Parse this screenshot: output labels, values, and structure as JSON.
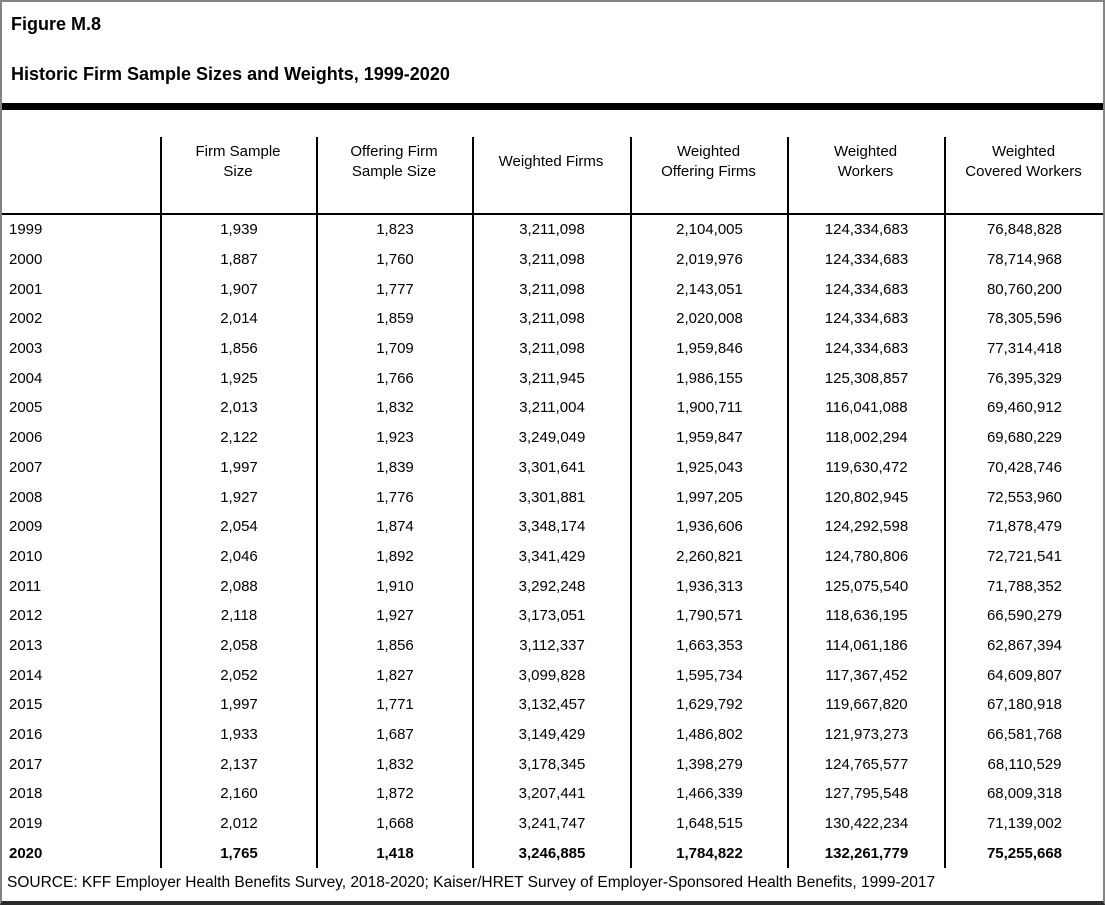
{
  "figure": {
    "label": "Figure M.8",
    "title": "Historic Firm Sample Sizes and Weights, 1999-2020"
  },
  "table": {
    "columns": [
      "",
      "Firm Sample\nSize",
      "Offering Firm\nSample Size",
      "Weighted Firms",
      "Weighted\nOffering Firms",
      "Weighted\nWorkers",
      "Weighted\nCovered Workers"
    ],
    "rows": [
      {
        "bold": false,
        "cells": [
          "1999",
          "1,939",
          "1,823",
          "3,211,098",
          "2,104,005",
          "124,334,683",
          "76,848,828"
        ]
      },
      {
        "bold": false,
        "cells": [
          "2000",
          "1,887",
          "1,760",
          "3,211,098",
          "2,019,976",
          "124,334,683",
          "78,714,968"
        ]
      },
      {
        "bold": false,
        "cells": [
          "2001",
          "1,907",
          "1,777",
          "3,211,098",
          "2,143,051",
          "124,334,683",
          "80,760,200"
        ]
      },
      {
        "bold": false,
        "cells": [
          "2002",
          "2,014",
          "1,859",
          "3,211,098",
          "2,020,008",
          "124,334,683",
          "78,305,596"
        ]
      },
      {
        "bold": false,
        "cells": [
          "2003",
          "1,856",
          "1,709",
          "3,211,098",
          "1,959,846",
          "124,334,683",
          "77,314,418"
        ]
      },
      {
        "bold": false,
        "cells": [
          "2004",
          "1,925",
          "1,766",
          "3,211,945",
          "1,986,155",
          "125,308,857",
          "76,395,329"
        ]
      },
      {
        "bold": false,
        "cells": [
          "2005",
          "2,013",
          "1,832",
          "3,211,004",
          "1,900,711",
          "116,041,088",
          "69,460,912"
        ]
      },
      {
        "bold": false,
        "cells": [
          "2006",
          "2,122",
          "1,923",
          "3,249,049",
          "1,959,847",
          "118,002,294",
          "69,680,229"
        ]
      },
      {
        "bold": false,
        "cells": [
          "2007",
          "1,997",
          "1,839",
          "3,301,641",
          "1,925,043",
          "119,630,472",
          "70,428,746"
        ]
      },
      {
        "bold": false,
        "cells": [
          "2008",
          "1,927",
          "1,776",
          "3,301,881",
          "1,997,205",
          "120,802,945",
          "72,553,960"
        ]
      },
      {
        "bold": false,
        "cells": [
          "2009",
          "2,054",
          "1,874",
          "3,348,174",
          "1,936,606",
          "124,292,598",
          "71,878,479"
        ]
      },
      {
        "bold": false,
        "cells": [
          "2010",
          "2,046",
          "1,892",
          "3,341,429",
          "2,260,821",
          "124,780,806",
          "72,721,541"
        ]
      },
      {
        "bold": false,
        "cells": [
          "2011",
          "2,088",
          "1,910",
          "3,292,248",
          "1,936,313",
          "125,075,540",
          "71,788,352"
        ]
      },
      {
        "bold": false,
        "cells": [
          "2012",
          "2,118",
          "1,927",
          "3,173,051",
          "1,790,571",
          "118,636,195",
          "66,590,279"
        ]
      },
      {
        "bold": false,
        "cells": [
          "2013",
          "2,058",
          "1,856",
          "3,112,337",
          "1,663,353",
          "114,061,186",
          "62,867,394"
        ]
      },
      {
        "bold": false,
        "cells": [
          "2014",
          "2,052",
          "1,827",
          "3,099,828",
          "1,595,734",
          "117,367,452",
          "64,609,807"
        ]
      },
      {
        "bold": false,
        "cells": [
          "2015",
          "1,997",
          "1,771",
          "3,132,457",
          "1,629,792",
          "119,667,820",
          "67,180,918"
        ]
      },
      {
        "bold": false,
        "cells": [
          "2016",
          "1,933",
          "1,687",
          "3,149,429",
          "1,486,802",
          "121,973,273",
          "66,581,768"
        ]
      },
      {
        "bold": false,
        "cells": [
          "2017",
          "2,137",
          "1,832",
          "3,178,345",
          "1,398,279",
          "124,765,577",
          "68,110,529"
        ]
      },
      {
        "bold": false,
        "cells": [
          "2018",
          "2,160",
          "1,872",
          "3,207,441",
          "1,466,339",
          "127,795,548",
          "68,009,318"
        ]
      },
      {
        "bold": false,
        "cells": [
          "2019",
          "2,012",
          "1,668",
          "3,241,747",
          "1,648,515",
          "130,422,234",
          "71,139,002"
        ]
      },
      {
        "bold": true,
        "cells": [
          "2020",
          "1,765",
          "1,418",
          "3,246,885",
          "1,784,822",
          "132,261,779",
          "75,255,668"
        ]
      }
    ]
  },
  "source": "SOURCE: KFF Employer Health Benefits Survey, 2018-2020; Kaiser/HRET Survey of Employer-Sponsored Health Benefits, 1999-2017"
}
